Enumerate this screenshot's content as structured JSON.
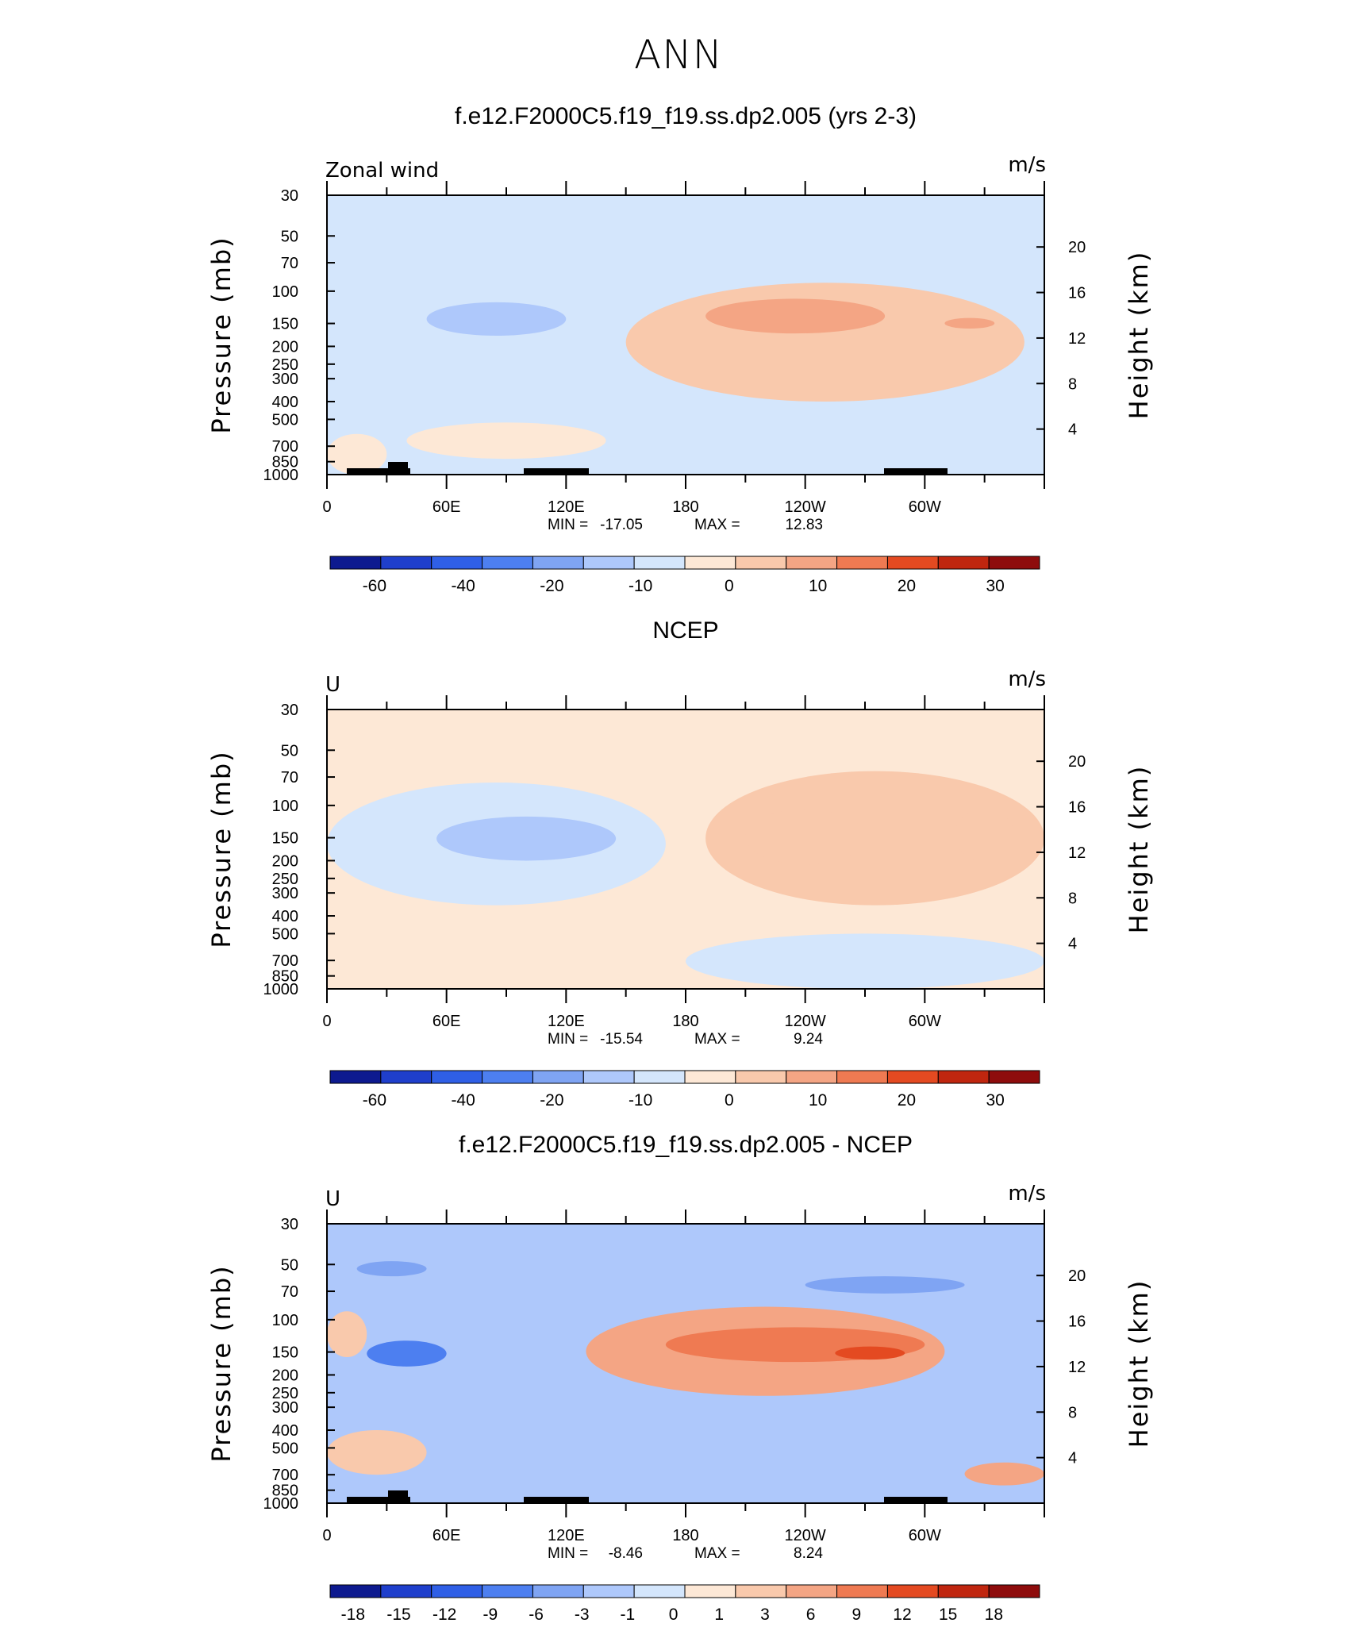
{
  "figure_title": "ANN",
  "colors": {
    "scale": [
      "#0d1a8f",
      "#1f3fcc",
      "#2f5fe6",
      "#4d7ff0",
      "#7fa4f3",
      "#aec8fb",
      "#d4e6fc",
      "#fde8d6",
      "#f9c9ac",
      "#f4a584",
      "#ef7a52",
      "#e44a21",
      "#c0260f",
      "#8e0c0c"
    ],
    "terrain": "#000000"
  },
  "chart_data": [
    {
      "type": "heatmap",
      "panel_title": "f.e12.F2000C5.f19_f19.ss.dp2.005 (yrs 2-3)",
      "left_label": "Zonal wind",
      "units": "m/s",
      "ylabel": "Pressure  (mb)",
      "ylabel_right": "Height  (km)",
      "xlim": [
        0,
        360
      ],
      "pressure_ticks": [
        "30",
        "50",
        "70",
        "100",
        "150",
        "200",
        "250",
        "300",
        "400",
        "500",
        "700",
        "850",
        "1000"
      ],
      "x_ticks": [
        "0",
        "60E",
        "120E",
        "180",
        "120W",
        "60W"
      ],
      "height_ticks": [
        "20",
        "16",
        "12",
        "8",
        "4"
      ],
      "stats": {
        "min_label": "MIN =",
        "min": "-17.05",
        "max_label": "MAX =",
        "max": "12.83"
      },
      "colorbar_labels": [
        "-60",
        "-40",
        "-20",
        "-10",
        "0",
        "10",
        "20",
        "30"
      ],
      "features": [
        {
          "lon": [
            10,
            150
          ],
          "p": [
            100,
            250
          ],
          "value": -8
        },
        {
          "lon": [
            50,
            120
          ],
          "p": [
            115,
            175
          ],
          "value": -14
        },
        {
          "lon": [
            150,
            350
          ],
          "p": [
            90,
            400
          ],
          "value": 6
        },
        {
          "lon": [
            190,
            280
          ],
          "p": [
            110,
            170
          ],
          "value": 11
        },
        {
          "lon": [
            310,
            335
          ],
          "p": [
            140,
            160
          ],
          "value": 11
        },
        {
          "lon": [
            40,
            140
          ],
          "p": [
            520,
            820
          ],
          "value": 4
        },
        {
          "lon": [
            190,
            235
          ],
          "p": [
            770,
            840
          ],
          "value": -6
        },
        {
          "lon": [
            0,
            30
          ],
          "p": [
            600,
            1000
          ],
          "value": 2
        }
      ]
    },
    {
      "type": "heatmap",
      "panel_title": "NCEP",
      "left_label": "U",
      "units": "m/s",
      "ylabel": "Pressure  (mb)",
      "ylabel_right": "Height  (km)",
      "xlim": [
        0,
        360
      ],
      "pressure_ticks": [
        "30",
        "50",
        "70",
        "100",
        "150",
        "200",
        "250",
        "300",
        "400",
        "500",
        "700",
        "850",
        "1000"
      ],
      "x_ticks": [
        "0",
        "60E",
        "120E",
        "180",
        "120W",
        "60W"
      ],
      "height_ticks": [
        "20",
        "16",
        "12",
        "8",
        "4"
      ],
      "stats": {
        "min_label": "MIN =",
        "min": "-15.54",
        "max_label": "MAX =",
        "max": "9.24"
      },
      "colorbar_labels": [
        "-60",
        "-40",
        "-20",
        "-10",
        "0",
        "10",
        "20",
        "30"
      ],
      "features": [
        {
          "lon": [
            0,
            170
          ],
          "p": [
            75,
            350
          ],
          "value": -5
        },
        {
          "lon": [
            55,
            145
          ],
          "p": [
            115,
            200
          ],
          "value": -12
        },
        {
          "lon": [
            190,
            360
          ],
          "p": [
            65,
            350
          ],
          "value": 5
        },
        {
          "lon": [
            210,
            270
          ],
          "p": [
            105,
            210
          ],
          "value": 9
        },
        {
          "lon": [
            315,
            345
          ],
          "p": [
            105,
            200
          ],
          "value": 9
        },
        {
          "lon": [
            50,
            140
          ],
          "p": [
            560,
            900
          ],
          "value": 4
        },
        {
          "lon": [
            180,
            360
          ],
          "p": [
            500,
            1000
          ],
          "value": -4
        },
        {
          "lon": [
            330,
            350
          ],
          "p": [
            740,
            800
          ],
          "value": -8
        }
      ]
    },
    {
      "type": "heatmap",
      "panel_title": "f.e12.F2000C5.f19_f19.ss.dp2.005 - NCEP",
      "left_label": "U",
      "units": "m/s",
      "ylabel": "Pressure  (mb)",
      "ylabel_right": "Height  (km)",
      "xlim": [
        0,
        360
      ],
      "pressure_ticks": [
        "30",
        "50",
        "70",
        "100",
        "150",
        "200",
        "250",
        "300",
        "400",
        "500",
        "700",
        "850",
        "1000"
      ],
      "x_ticks": [
        "0",
        "60E",
        "120E",
        "180",
        "120W",
        "60W"
      ],
      "height_ticks": [
        "20",
        "16",
        "12",
        "8",
        "4"
      ],
      "stats": {
        "min_label": "MIN =",
        "min": "-8.46",
        "max_label": "MAX =",
        "max": "8.24"
      },
      "colorbar_labels": [
        "-18",
        "-15",
        "-12",
        "-9",
        "-6",
        "-3",
        "-1",
        "0",
        "1",
        "3",
        "6",
        "9",
        "12",
        "15",
        "18"
      ],
      "features": [
        {
          "lon": [
            130,
            310
          ],
          "p": [
            85,
            260
          ],
          "value": 4
        },
        {
          "lon": [
            170,
            300
          ],
          "p": [
            110,
            170
          ],
          "value": 7
        },
        {
          "lon": [
            255,
            290
          ],
          "p": [
            140,
            165
          ],
          "value": 9
        },
        {
          "lon": [
            240,
            320
          ],
          "p": [
            58,
            72
          ],
          "value": -8
        },
        {
          "lon": [
            15,
            50
          ],
          "p": [
            48,
            58
          ],
          "value": -9
        },
        {
          "lon": [
            20,
            60
          ],
          "p": [
            130,
            180
          ],
          "value": -10
        },
        {
          "lon": [
            120,
            220
          ],
          "p": [
            450,
            900
          ],
          "value": -6
        },
        {
          "lon": [
            0,
            50
          ],
          "p": [
            400,
            700
          ],
          "value": 2
        },
        {
          "lon": [
            320,
            360
          ],
          "p": [
            600,
            800
          ],
          "value": 3
        },
        {
          "lon": [
            0,
            20
          ],
          "p": [
            90,
            160
          ],
          "value": 2
        }
      ]
    }
  ]
}
